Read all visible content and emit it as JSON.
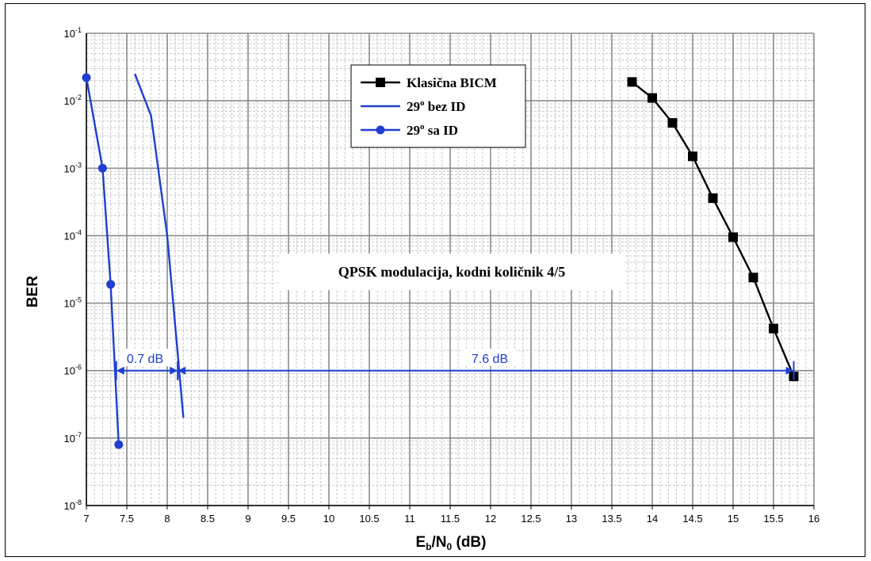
{
  "chart_data": {
    "type": "line",
    "xlabel_main": "E",
    "xlabel_sub_b": "b",
    "xlabel_mid": "/N",
    "xlabel_sub_0": "0",
    "xlabel_unit": " (dB)",
    "ylabel": "BER",
    "xlim": [
      7,
      16
    ],
    "ylim": [
      1e-08,
      0.1
    ],
    "yscale": "log",
    "x_ticks": [
      "7",
      "7.5",
      "8",
      "8.5",
      "9",
      "9.5",
      "10",
      "10.5",
      "11",
      "11.5",
      "12",
      "12.5",
      "13",
      "13.5",
      "14",
      "14.5",
      "15",
      "15.5",
      "16"
    ],
    "y_ticks": [
      {
        "base": "10",
        "exp": "-1"
      },
      {
        "base": "10",
        "exp": "-2"
      },
      {
        "base": "10",
        "exp": "-3"
      },
      {
        "base": "10",
        "exp": "-4"
      },
      {
        "base": "10",
        "exp": "-5"
      },
      {
        "base": "10",
        "exp": "-6"
      },
      {
        "base": "10",
        "exp": "-7"
      },
      {
        "base": "10",
        "exp": "-8"
      }
    ],
    "grid": true,
    "legend_position": "top-center",
    "series": [
      {
        "name": "Klasična BICM",
        "color": "#000000",
        "marker": "square",
        "x": [
          13.75,
          14.0,
          14.25,
          14.5,
          14.75,
          15.0,
          15.25,
          15.5,
          15.75
        ],
        "y": [
          0.019,
          0.011,
          0.0047,
          0.0015,
          0.00036,
          9.5e-05,
          2.4e-05,
          4.2e-06,
          8.2e-07
        ]
      },
      {
        "name_base": "29",
        "name_sup": "o",
        "name_rest": " bez ID",
        "color": "#1f3fd0",
        "marker": "none",
        "x": [
          7.6,
          7.8,
          8.0,
          8.2
        ],
        "y": [
          0.025,
          0.006,
          0.0001,
          2e-07
        ]
      },
      {
        "name_base": "29",
        "name_sup": "o",
        "name_rest": " sa ID",
        "color": "#1f3fd0",
        "marker": "circle",
        "x": [
          7.0,
          7.2,
          7.3,
          7.4
        ],
        "y": [
          0.022,
          0.001,
          1.9e-05,
          8e-08
        ]
      }
    ],
    "annotations": [
      {
        "text": "QPSK modulacija, kodni količnik 4/5"
      },
      {
        "text": "0.7 dB",
        "x_from": 7.37,
        "x_to": 8.13,
        "y": 1e-06
      },
      {
        "text": "7.6 dB",
        "x_from": 8.13,
        "x_to": 15.75,
        "y": 1e-06
      }
    ],
    "colors": {
      "blue": "#1f3fd0",
      "black": "#000000",
      "grid_major": "#8c8c8c",
      "grid_minor": "#c8c8c8"
    }
  }
}
